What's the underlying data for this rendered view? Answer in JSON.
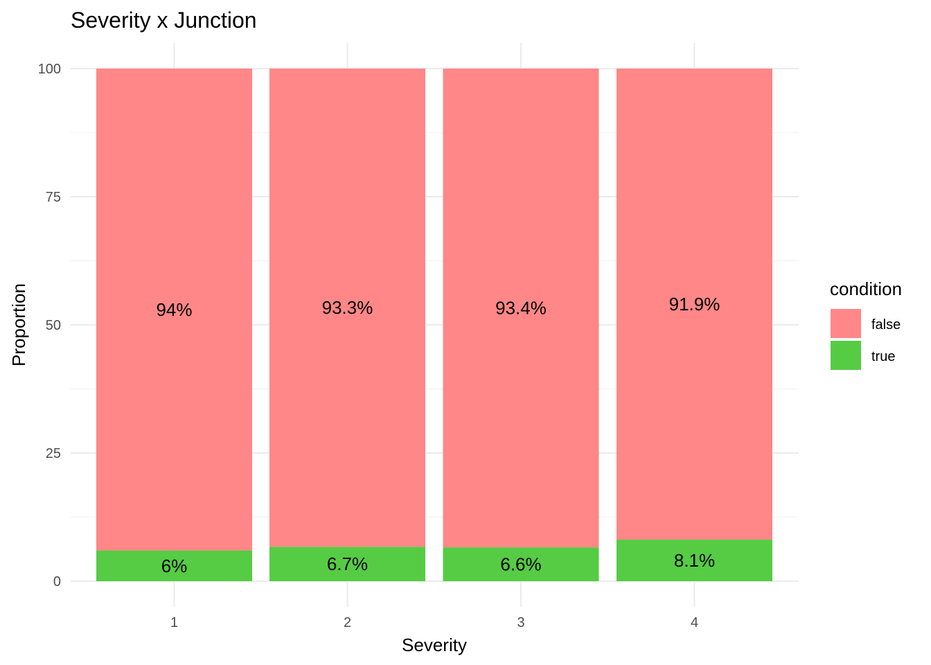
{
  "chart_data": {
    "type": "bar",
    "stacked": true,
    "title": "Severity x Junction",
    "xlabel": "Severity",
    "ylabel": "Proportion",
    "categories": [
      "1",
      "2",
      "3",
      "4"
    ],
    "ylim": [
      0,
      100
    ],
    "yticks": [
      0,
      25,
      50,
      75,
      100
    ],
    "grid": true,
    "legend": {
      "title": "condition",
      "placement": "right"
    },
    "series": [
      {
        "name": "true",
        "color": "#55CC44",
        "values": [
          6,
          6.7,
          6.6,
          8.1
        ],
        "labels": [
          "6%",
          "6.7%",
          "6.6%",
          "8.1%"
        ]
      },
      {
        "name": "false",
        "color": "#FF8787",
        "values": [
          94,
          93.3,
          93.4,
          91.9
        ],
        "labels": [
          "94%",
          "93.3%",
          "93.4%",
          "91.9%"
        ]
      }
    ]
  }
}
